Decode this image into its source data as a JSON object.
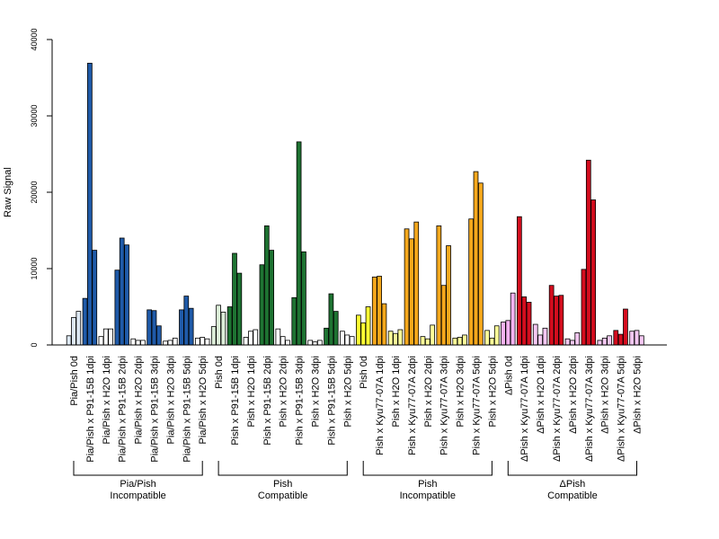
{
  "chart_data": {
    "type": "bar",
    "ylabel": "Raw Signal",
    "ylim": [
      0,
      40000
    ],
    "yticks": [
      0,
      10000,
      20000,
      30000,
      40000
    ],
    "bars_per_category": 3,
    "categories": [
      "Pia/Pish 0d",
      "Pia/Pish x P91-15B 1dpi",
      "Pia/Pish x H2O 1dpi",
      "Pia/Pish x P91-15B 2dpi",
      "Pia/Pish x H2O 2dpi",
      "Pia/Pish x P91-15B 3dpi",
      "Pia/Pish x H2O 3dpi",
      "Pia/Pish x P91-15B 5dpi",
      "Pia/Pish x H2O 5dpi",
      "Pish 0d",
      "Pish x P91-15B 1dpi",
      "Pish x H2O 1dpi",
      "Pish x P91-15B 2dpi",
      "Pish x H2O 2dpi",
      "Pish x P91-15B 3dpi",
      "Pish x H2O 3dpi",
      "Pish x P91-15B 5dpi",
      "Pish x H2O 5dpi",
      "Pish 0d",
      "Pish x Kyu77-07A 1dpi",
      "Pish x H2O 1dpi",
      "Pish x Kyu77-07A 2dpi",
      "Pish x H2O 2dpi",
      "Pish x Kyu77-07A 3dpi",
      "Pish x H2O 3dpi",
      "Pish x Kyu77-07A 5dpi",
      "Pish x H2O 5dpi",
      "ΔPish 0d",
      "ΔPish x Kyu77-07A 1dpi",
      "ΔPish x H2O 1dpi",
      "ΔPish x Kyu77-07A 2dpi",
      "ΔPish x H2O 2dpi",
      "ΔPish x Kyu77-07A 3dpi",
      "ΔPish x H2O 3dpi",
      "ΔPish x Kyu77-07A 5dpi",
      "ΔPish x H2O 5dpi"
    ],
    "values": [
      [
        1200,
        3600,
        4400
      ],
      [
        6100,
        36900,
        12400
      ],
      [
        1100,
        2100,
        2100
      ],
      [
        9800,
        14000,
        13100
      ],
      [
        800,
        600,
        600
      ],
      [
        4600,
        4500,
        2500
      ],
      [
        500,
        600,
        900
      ],
      [
        4600,
        6400,
        4800
      ],
      [
        900,
        1000,
        800
      ],
      [
        2400,
        5200,
        4300
      ],
      [
        5000,
        12000,
        9400
      ],
      [
        1000,
        1800,
        2000
      ],
      [
        10500,
        15600,
        12400
      ],
      [
        2100,
        1100,
        600
      ],
      [
        6200,
        26600,
        12200
      ],
      [
        600,
        400,
        600
      ],
      [
        2200,
        6700,
        4400
      ],
      [
        1800,
        1300,
        1100
      ],
      [
        3900,
        2900,
        5000
      ],
      [
        8900,
        9000,
        5400
      ],
      [
        1800,
        1500,
        2000
      ],
      [
        15200,
        13900,
        16100
      ],
      [
        1100,
        800,
        2600
      ],
      [
        15600,
        7800,
        13000
      ],
      [
        900,
        1000,
        1300
      ],
      [
        16500,
        22700,
        21200
      ],
      [
        1900,
        900,
        2500
      ],
      [
        3000,
        3200,
        6800
      ],
      [
        16800,
        6300,
        5600
      ],
      [
        2700,
        1300,
        2200
      ],
      [
        7800,
        6400,
        6500
      ],
      [
        800,
        600,
        1600
      ],
      [
        9900,
        24200,
        19000
      ],
      [
        600,
        900,
        1200
      ],
      [
        1900,
        1400,
        4700
      ],
      [
        1800,
        1900,
        1200
      ]
    ],
    "category_colors": [
      "#dde8f3",
      "#1f5aa8",
      "#ffffff",
      "#1f5aa8",
      "#ffffff",
      "#1f5aa8",
      "#ffffff",
      "#1f5aa8",
      "#ffffff",
      "#ddeed9",
      "#1e7332",
      "#ffffff",
      "#1e7332",
      "#ffffff",
      "#1e7332",
      "#ffffff",
      "#1e7332",
      "#ffffff",
      "#ffff33",
      "#f5a81c",
      "#ffff99",
      "#f5a81c",
      "#ffff99",
      "#f5a81c",
      "#ffff99",
      "#f5a81c",
      "#ffff99",
      "#f4b2f0",
      "#d40d1e",
      "#f4c8f2",
      "#d40d1e",
      "#f4c8f2",
      "#d40d1e",
      "#f4c8f2",
      "#d40d1e",
      "#f4c8f2"
    ],
    "groups": [
      {
        "line1": "Pia/Pish",
        "line2": "Incompatible",
        "span": [
          0,
          8
        ]
      },
      {
        "line1": "Pish",
        "line2": "Compatible",
        "span": [
          9,
          17
        ]
      },
      {
        "line1": "Pish",
        "line2": "Incompatible",
        "span": [
          18,
          26
        ]
      },
      {
        "line1": "ΔPish",
        "line2": "Compatible",
        "span": [
          27,
          35
        ]
      }
    ],
    "grid": false,
    "legend": "none"
  }
}
